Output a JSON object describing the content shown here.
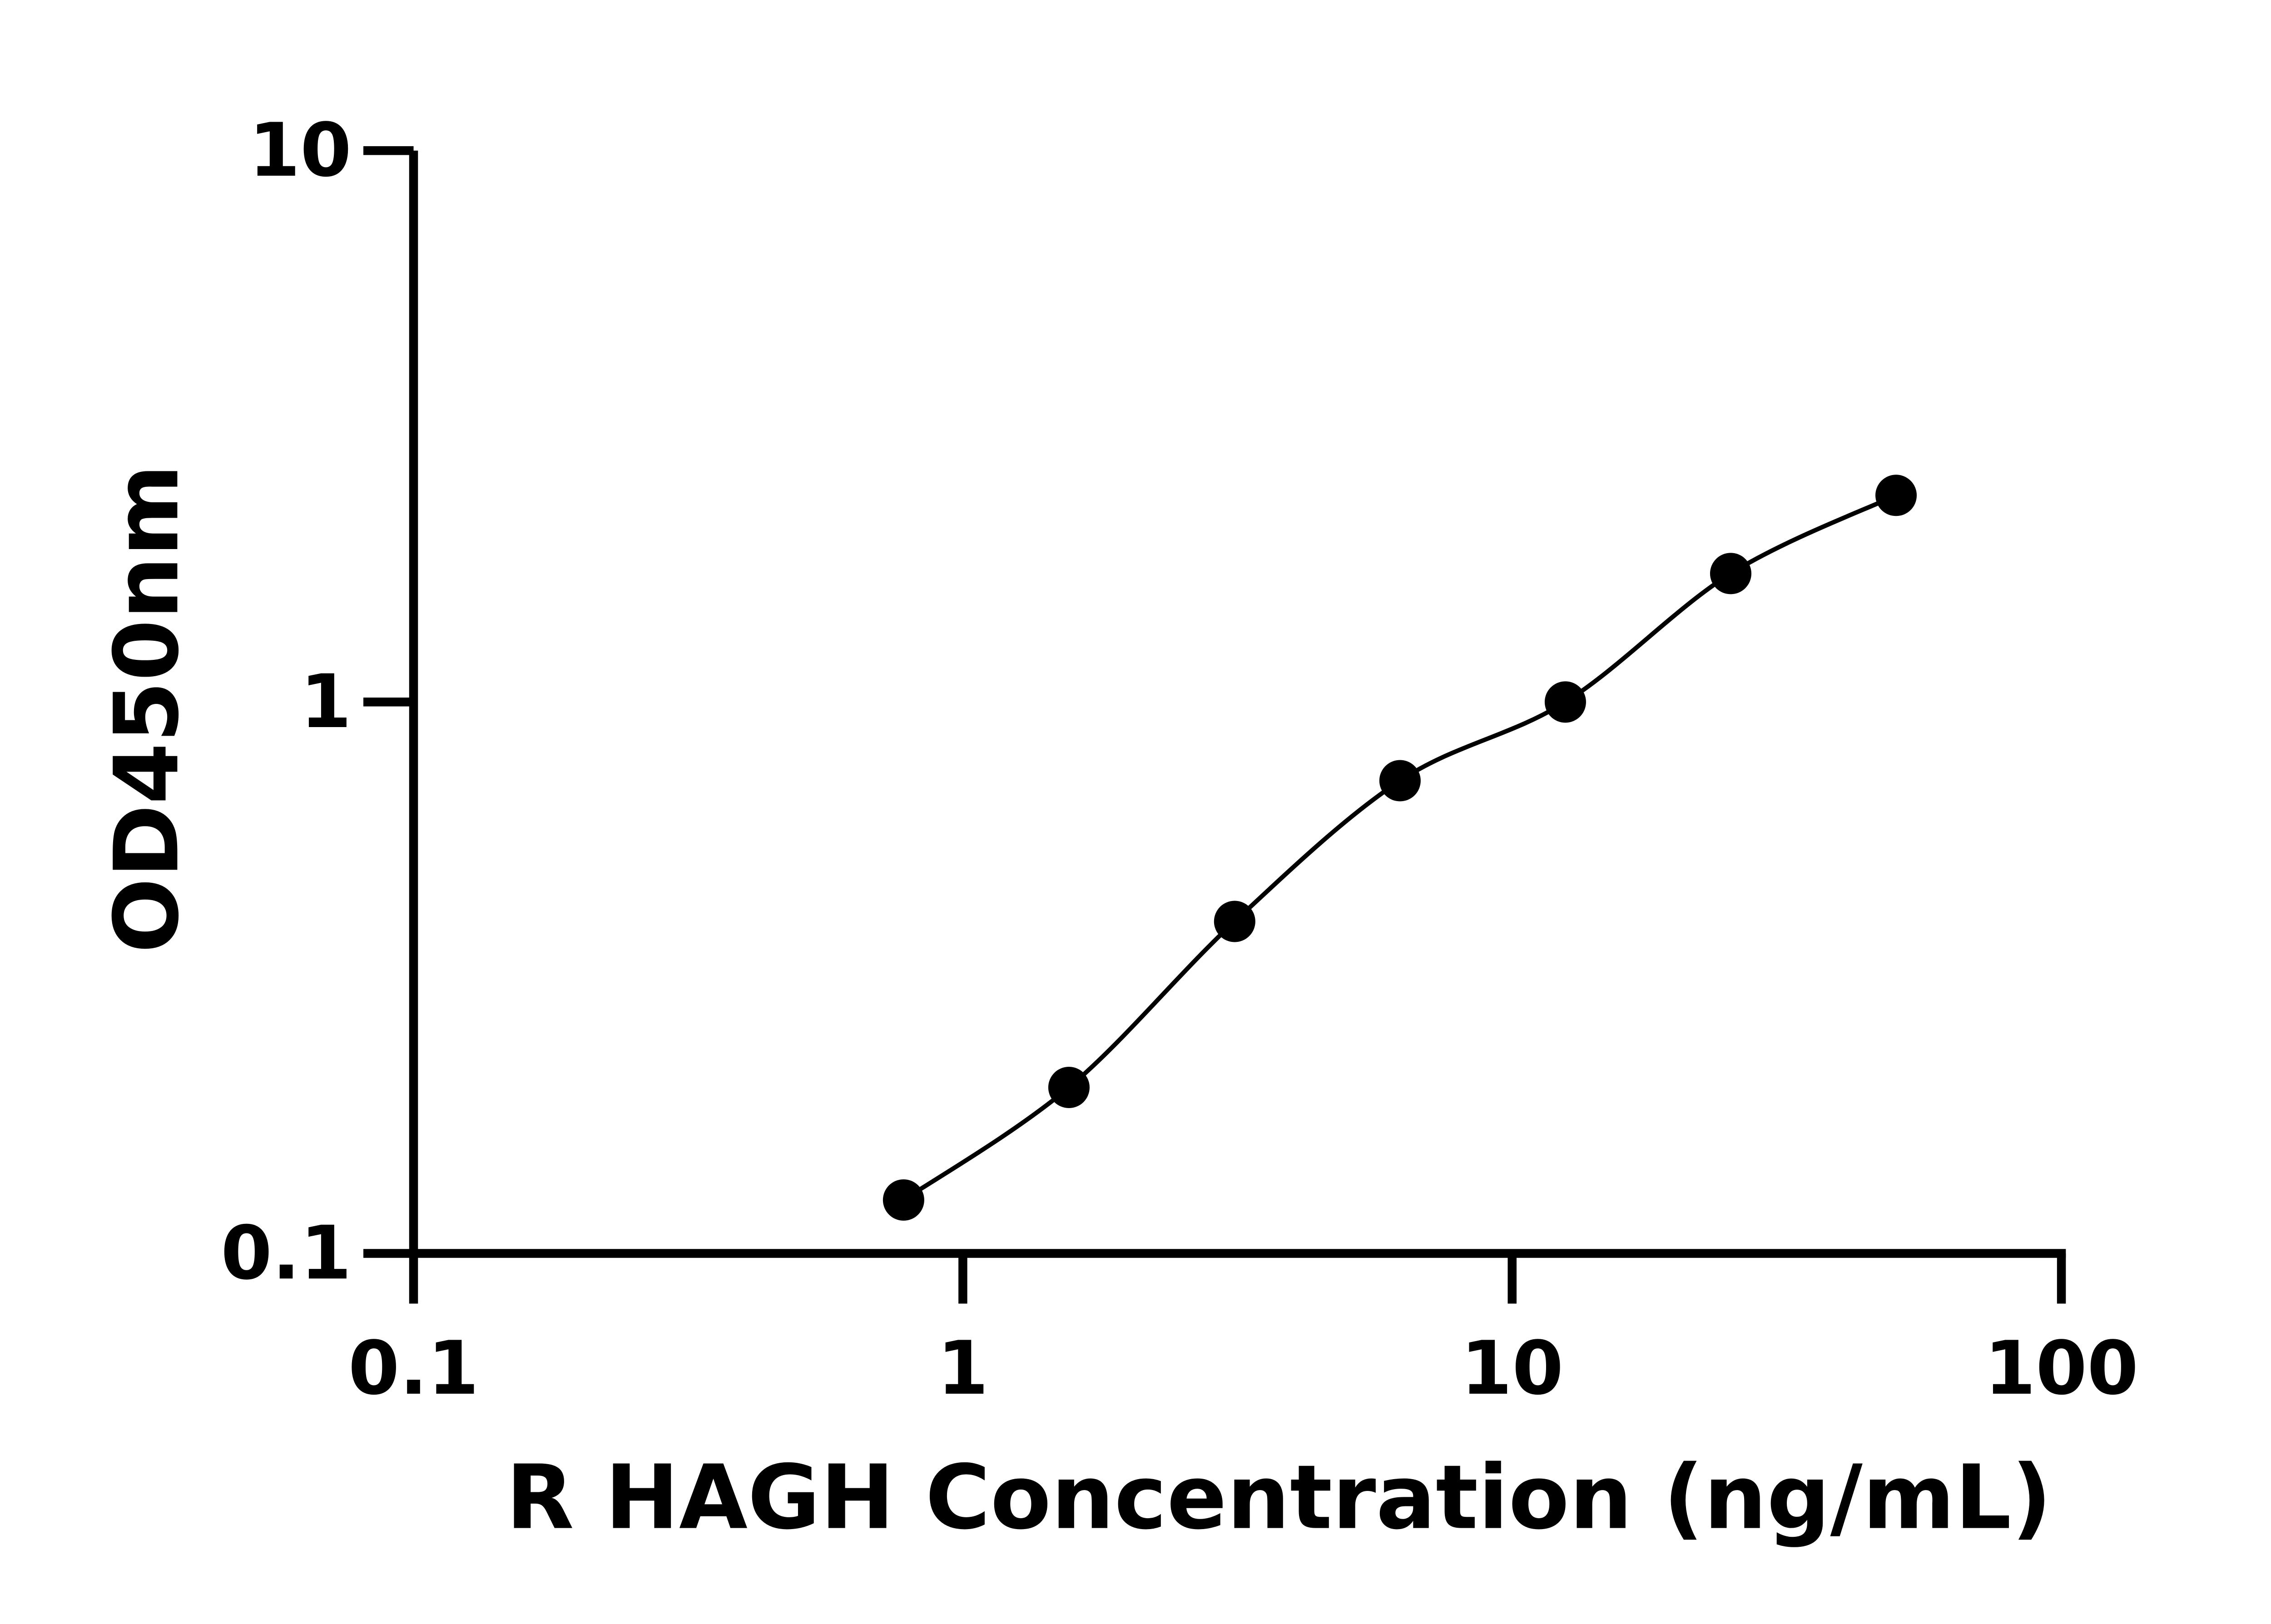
{
  "chart_data": {
    "type": "scatter",
    "title": "",
    "xlabel": "R HAGH Concentration (ng/mL)",
    "ylabel": "OD450nm",
    "xscale": "log",
    "yscale": "log",
    "xlim": [
      0.1,
      100
    ],
    "ylim": [
      0.1,
      10
    ],
    "xticks": [
      "0.1",
      "1",
      "10",
      "100"
    ],
    "yticks": [
      "0.1",
      "1",
      "10"
    ],
    "grid": false,
    "legend": "none",
    "fit_line": true,
    "marker_color": "#000000",
    "x": [
      0.78,
      1.56,
      3.125,
      6.25,
      12.5,
      25,
      50
    ],
    "y": [
      0.125,
      0.2,
      0.4,
      0.72,
      1.0,
      1.71,
      2.37
    ]
  }
}
